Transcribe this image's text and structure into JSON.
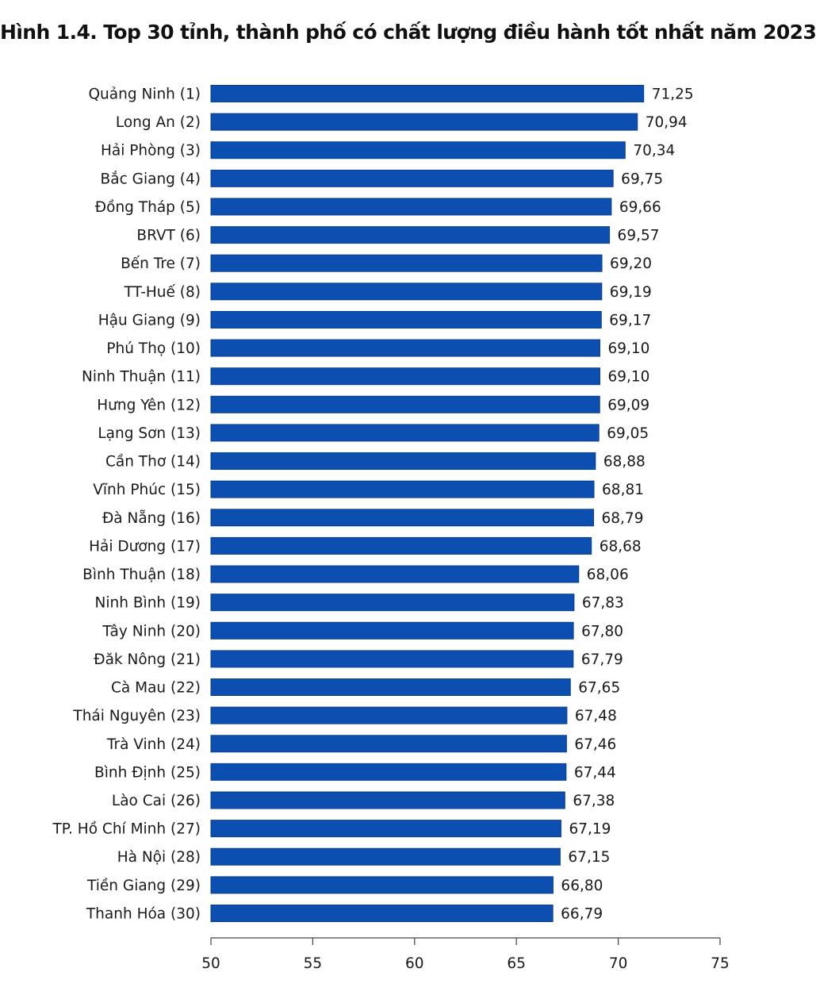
{
  "chart_data": {
    "type": "bar",
    "orientation": "horizontal",
    "title": "Hình 1.4. Top 30 tỉnh, thành phố có chất lượng điều hành tốt nhất năm 2023",
    "categories": [
      "Quảng Ninh (1)",
      "Long An (2)",
      "Hải Phòng (3)",
      "Bắc Giang (4)",
      "Đồng Tháp (5)",
      "BRVT (6)",
      "Bến Tre (7)",
      "TT-Huế (8)",
      "Hậu Giang (9)",
      "Phú Thọ (10)",
      "Ninh Thuận (11)",
      "Hưng Yên (12)",
      "Lạng Sơn (13)",
      "Cần Thơ (14)",
      "Vĩnh Phúc (15)",
      "Đà Nẵng (16)",
      "Hải Dương (17)",
      "Bình Thuận (18)",
      "Ninh Bình (19)",
      "Tây Ninh (20)",
      "Đăk Nông (21)",
      "Cà Mau (22)",
      "Thái Nguyên (23)",
      "Trà Vinh (24)",
      "Bình Định (25)",
      "Lào Cai (26)",
      "TP. Hồ Chí Minh (27)",
      "Hà Nội (28)",
      "Tiền Giang (29)",
      "Thanh Hóa (30)"
    ],
    "values": [
      71.25,
      70.94,
      70.34,
      69.75,
      69.66,
      69.57,
      69.2,
      69.19,
      69.17,
      69.1,
      69.1,
      69.09,
      69.05,
      68.88,
      68.81,
      68.79,
      68.68,
      68.06,
      67.83,
      67.8,
      67.79,
      67.65,
      67.48,
      67.46,
      67.44,
      67.38,
      67.19,
      67.15,
      66.8,
      66.79
    ],
    "value_labels": [
      "71,25",
      "70,94",
      "70,34",
      "69,75",
      "69,66",
      "69,57",
      "69,20",
      "69,19",
      "69,17",
      "69,10",
      "69,10",
      "69,09",
      "69,05",
      "68,88",
      "68,81",
      "68,79",
      "68,68",
      "68,06",
      "67,83",
      "67,80",
      "67,79",
      "67,65",
      "67,48",
      "67,46",
      "67,44",
      "67,38",
      "67,19",
      "67,15",
      "66,80",
      "66,79"
    ],
    "xlim": [
      50,
      75
    ],
    "xticks": [
      50,
      55,
      60,
      65,
      70,
      75
    ],
    "xlabel": "",
    "ylabel": "",
    "grid": false,
    "legend": "none",
    "bar_color": "#0c4fb0",
    "axis_color": "#444444"
  }
}
